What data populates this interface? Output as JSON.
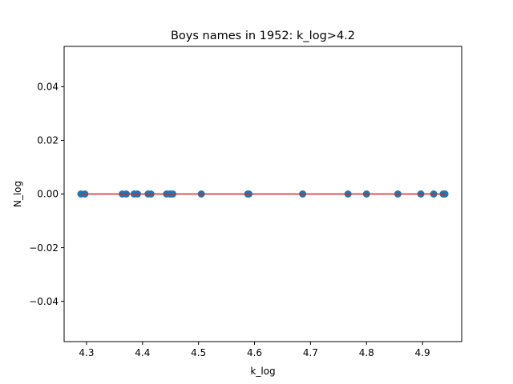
{
  "chart_data": {
    "type": "scatter",
    "title": "Boys names in 1952: k_log>4.2",
    "xlabel": "k_log",
    "ylabel": "N_log",
    "xlim": [
      4.26,
      4.97
    ],
    "ylim": [
      -0.055,
      0.055
    ],
    "xticks": [
      4.3,
      4.4,
      4.5,
      4.6,
      4.7,
      4.8,
      4.9
    ],
    "xtick_labels": [
      "4.3",
      "4.4",
      "4.5",
      "4.6",
      "4.7",
      "4.8",
      "4.9"
    ],
    "yticks": [
      0.04,
      0.02,
      0.0,
      -0.02,
      -0.04
    ],
    "ytick_labels": [
      "0.04",
      "0.02",
      "0.00",
      "−0.02",
      "−0.04"
    ],
    "grid": false,
    "series": [
      {
        "kind": "scatter",
        "color": "#1f77b4",
        "x": [
          4.29,
          4.297,
          4.364,
          4.371,
          4.385,
          4.391,
          4.41,
          4.415,
          4.443,
          4.449,
          4.454,
          4.505,
          4.588,
          4.59,
          4.686,
          4.767,
          4.8,
          4.856,
          4.897,
          4.92,
          4.937,
          4.94
        ],
        "y": [
          0,
          0,
          0,
          0,
          0,
          0,
          0,
          0,
          0,
          0,
          0,
          0,
          0,
          0,
          0,
          0,
          0,
          0,
          0,
          0,
          0,
          0
        ]
      },
      {
        "kind": "line",
        "color": "#d62728",
        "x": [
          4.29,
          4.94
        ],
        "y": [
          0,
          0
        ]
      }
    ]
  }
}
